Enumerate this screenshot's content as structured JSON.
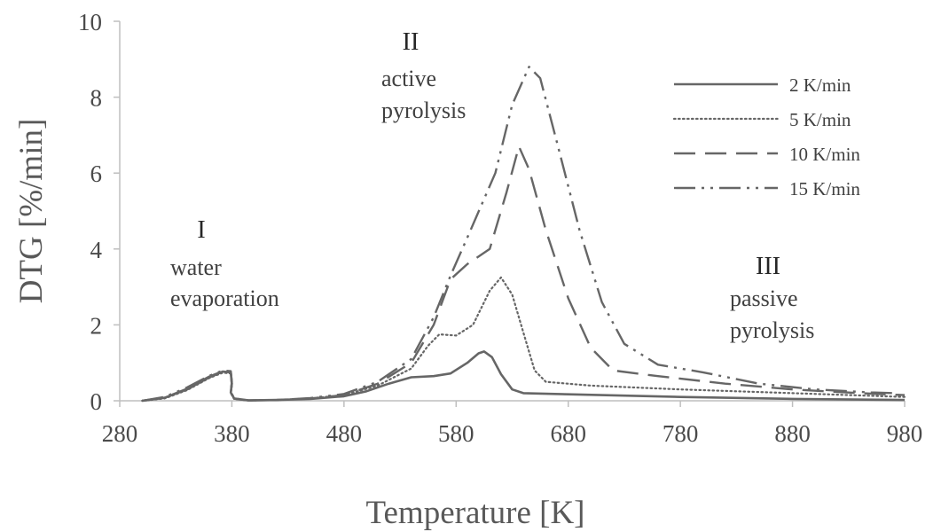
{
  "chart_data": {
    "type": "line",
    "title": "",
    "xlabel": "Temperature [K]",
    "ylabel": "DTG  [%/min]",
    "xlim": [
      280,
      980
    ],
    "ylim": [
      0,
      10
    ],
    "xticks": [
      "280",
      "380",
      "480",
      "580",
      "680",
      "780",
      "880",
      "980"
    ],
    "yticks": [
      "0",
      "2",
      "4",
      "6",
      "8",
      "10"
    ],
    "grid": false,
    "legend_position": "top-right",
    "axis_color": "#bfbfbf",
    "line_color": "#666666",
    "series": [
      {
        "name": "2 K/min",
        "style": "solid",
        "points": [
          [
            300,
            0
          ],
          [
            320,
            0.08
          ],
          [
            340,
            0.3
          ],
          [
            360,
            0.62
          ],
          [
            372,
            0.77
          ],
          [
            379,
            0.75
          ],
          [
            380,
            0.45
          ],
          [
            379,
            0.22
          ],
          [
            382,
            0.06
          ],
          [
            395,
            0.01
          ],
          [
            420,
            0.02
          ],
          [
            450,
            0.05
          ],
          [
            480,
            0.12
          ],
          [
            500,
            0.25
          ],
          [
            520,
            0.45
          ],
          [
            540,
            0.62
          ],
          [
            560,
            0.65
          ],
          [
            575,
            0.72
          ],
          [
            590,
            1.0
          ],
          [
            600,
            1.25
          ],
          [
            605,
            1.3
          ],
          [
            612,
            1.15
          ],
          [
            620,
            0.7
          ],
          [
            630,
            0.3
          ],
          [
            640,
            0.2
          ],
          [
            680,
            0.17
          ],
          [
            780,
            0.1
          ],
          [
            880,
            0.05
          ],
          [
            980,
            0.02
          ]
        ]
      },
      {
        "name": "5 K/min",
        "style": "dotted",
        "points": [
          [
            300,
            0
          ],
          [
            320,
            0.06
          ],
          [
            340,
            0.28
          ],
          [
            360,
            0.6
          ],
          [
            372,
            0.74
          ],
          [
            379,
            0.72
          ],
          [
            380,
            0.4
          ],
          [
            379,
            0.2
          ],
          [
            382,
            0.05
          ],
          [
            395,
            0.01
          ],
          [
            420,
            0.02
          ],
          [
            450,
            0.06
          ],
          [
            480,
            0.15
          ],
          [
            510,
            0.4
          ],
          [
            540,
            0.85
          ],
          [
            555,
            1.45
          ],
          [
            565,
            1.75
          ],
          [
            580,
            1.72
          ],
          [
            595,
            2.0
          ],
          [
            610,
            2.9
          ],
          [
            620,
            3.25
          ],
          [
            630,
            2.8
          ],
          [
            640,
            1.8
          ],
          [
            650,
            0.8
          ],
          [
            660,
            0.5
          ],
          [
            700,
            0.4
          ],
          [
            780,
            0.3
          ],
          [
            880,
            0.2
          ],
          [
            980,
            0.1
          ]
        ]
      },
      {
        "name": "10 K/min",
        "style": "dashed",
        "points": [
          [
            300,
            0
          ],
          [
            320,
            0.08
          ],
          [
            340,
            0.32
          ],
          [
            360,
            0.64
          ],
          [
            372,
            0.78
          ],
          [
            379,
            0.76
          ],
          [
            380,
            0.45
          ],
          [
            379,
            0.2
          ],
          [
            382,
            0.05
          ],
          [
            395,
            0.01
          ],
          [
            420,
            0.02
          ],
          [
            450,
            0.06
          ],
          [
            480,
            0.15
          ],
          [
            510,
            0.45
          ],
          [
            540,
            1.0
          ],
          [
            560,
            2.0
          ],
          [
            575,
            3.2
          ],
          [
            590,
            3.6
          ],
          [
            610,
            4.0
          ],
          [
            625,
            5.5
          ],
          [
            636,
            6.7
          ],
          [
            645,
            6.1
          ],
          [
            660,
            4.5
          ],
          [
            680,
            2.7
          ],
          [
            700,
            1.4
          ],
          [
            720,
            0.8
          ],
          [
            760,
            0.65
          ],
          [
            820,
            0.45
          ],
          [
            880,
            0.3
          ],
          [
            940,
            0.2
          ],
          [
            980,
            0.15
          ]
        ]
      },
      {
        "name": "15 K/min",
        "style": "dashdotdot",
        "points": [
          [
            300,
            0
          ],
          [
            320,
            0.1
          ],
          [
            340,
            0.35
          ],
          [
            360,
            0.66
          ],
          [
            372,
            0.8
          ],
          [
            379,
            0.78
          ],
          [
            380,
            0.5
          ],
          [
            379,
            0.24
          ],
          [
            382,
            0.06
          ],
          [
            395,
            0.01
          ],
          [
            420,
            0.02
          ],
          [
            450,
            0.07
          ],
          [
            480,
            0.18
          ],
          [
            510,
            0.5
          ],
          [
            540,
            1.1
          ],
          [
            560,
            2.2
          ],
          [
            575,
            3.3
          ],
          [
            590,
            4.3
          ],
          [
            615,
            6.0
          ],
          [
            630,
            7.8
          ],
          [
            645,
            8.8
          ],
          [
            655,
            8.5
          ],
          [
            670,
            6.8
          ],
          [
            690,
            4.5
          ],
          [
            710,
            2.6
          ],
          [
            730,
            1.5
          ],
          [
            760,
            0.95
          ],
          [
            800,
            0.75
          ],
          [
            850,
            0.45
          ],
          [
            900,
            0.3
          ],
          [
            950,
            0.22
          ],
          [
            970,
            0.2
          ],
          [
            978,
            0.12
          ],
          [
            980,
            0.05
          ]
        ]
      }
    ],
    "annotations": [
      {
        "roman": "I",
        "lines": [
          "water",
          "evaporation"
        ]
      },
      {
        "roman": "II",
        "lines": [
          "active",
          "pyrolysis"
        ]
      },
      {
        "roman": "III",
        "lines": [
          "passive",
          "pyrolysis"
        ]
      }
    ]
  }
}
